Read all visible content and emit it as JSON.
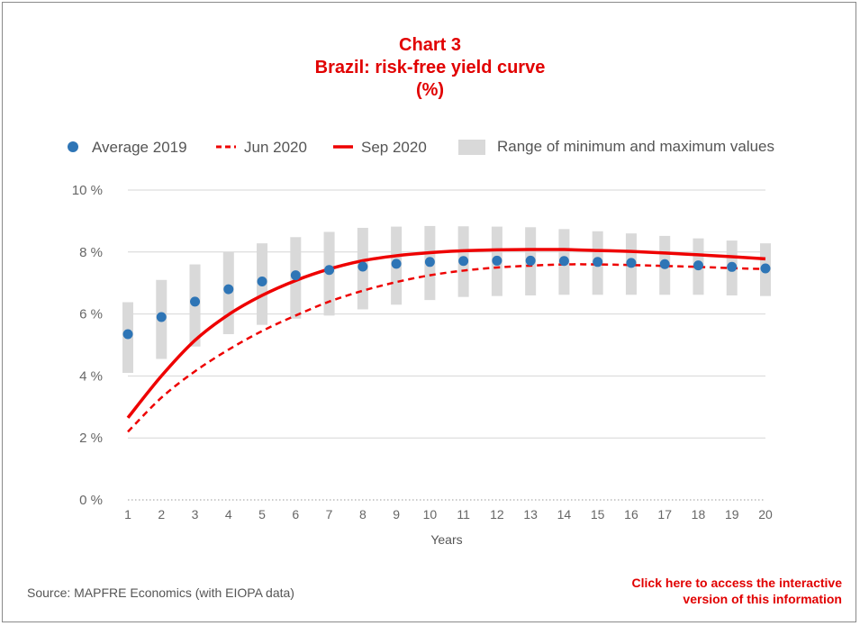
{
  "header": {
    "title_line1": "Chart 3",
    "title_line2": "Brazil: risk-free yield curve",
    "title_line3": "(%)"
  },
  "footer": {
    "source": "Source: MAPFRE Economics (with EIOPA data)",
    "interactive_line1": "Click here to access the interactive",
    "interactive_line2": "version of this information"
  },
  "colors": {
    "average": "#2e75b6",
    "line": "#ee0000",
    "range": "#d9d9d9",
    "grid": "#d6d6d6"
  },
  "chart_data": {
    "type": "line",
    "xlabel": "Years",
    "ylabel": "",
    "x": [
      1,
      2,
      3,
      4,
      5,
      6,
      7,
      8,
      9,
      10,
      11,
      12,
      13,
      14,
      15,
      16,
      17,
      18,
      19,
      20
    ],
    "x_tick_labels": [
      "1",
      "2",
      "3",
      "4",
      "5",
      "6",
      "7",
      "8",
      "9",
      "10",
      "11",
      "12",
      "13",
      "14",
      "15",
      "16",
      "17",
      "18",
      "19",
      "20"
    ],
    "ylim": [
      0,
      10
    ],
    "y_ticks": [
      0,
      2,
      4,
      6,
      8,
      10
    ],
    "y_tick_labels": [
      "0 %",
      "2 %",
      "4 %",
      "6 %",
      "8 %",
      "10 %"
    ],
    "grid": true,
    "legend_position": "top",
    "legend": {
      "average": "Average 2019",
      "jun": "Jun 2020",
      "sep": "Sep 2020",
      "range": "Range of minimum and maximum values"
    },
    "series": [
      {
        "name": "Average 2019",
        "style": "dots",
        "values": [
          5.35,
          5.9,
          6.4,
          6.8,
          7.05,
          7.25,
          7.42,
          7.53,
          7.62,
          7.68,
          7.71,
          7.72,
          7.72,
          7.71,
          7.68,
          7.65,
          7.61,
          7.57,
          7.52,
          7.47
        ]
      },
      {
        "name": "Jun 2020",
        "style": "dashed",
        "values": [
          2.2,
          3.3,
          4.15,
          4.85,
          5.45,
          5.95,
          6.4,
          6.75,
          7.03,
          7.25,
          7.4,
          7.5,
          7.56,
          7.6,
          7.6,
          7.58,
          7.55,
          7.52,
          7.48,
          7.45
        ]
      },
      {
        "name": "Sep 2020",
        "style": "solid",
        "values": [
          2.65,
          4.0,
          5.15,
          5.98,
          6.6,
          7.08,
          7.45,
          7.72,
          7.88,
          7.98,
          8.04,
          8.07,
          8.08,
          8.08,
          8.05,
          8.02,
          7.97,
          7.91,
          7.85,
          7.78
        ]
      },
      {
        "name": "Range of minimum and maximum values",
        "style": "range",
        "min": [
          4.1,
          4.55,
          4.95,
          5.35,
          5.65,
          5.85,
          5.95,
          6.15,
          6.3,
          6.45,
          6.55,
          6.58,
          6.6,
          6.62,
          6.62,
          6.62,
          6.62,
          6.62,
          6.6,
          6.58
        ],
        "max": [
          6.38,
          7.1,
          7.6,
          8.0,
          8.28,
          8.48,
          8.65,
          8.78,
          8.82,
          8.84,
          8.83,
          8.82,
          8.8,
          8.74,
          8.67,
          8.6,
          8.52,
          8.44,
          8.37,
          8.28
        ]
      }
    ]
  }
}
